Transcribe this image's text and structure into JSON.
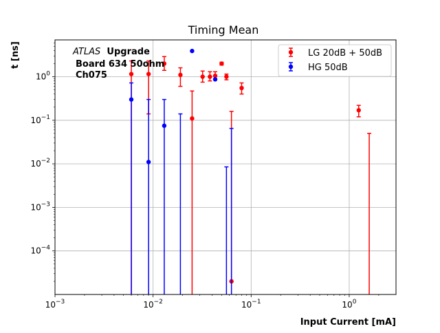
{
  "chart_data": {
    "type": "scatter",
    "title": "Timing Mean",
    "xlabel": "Input Current [mA]",
    "ylabel": "t [ns]",
    "xscale": "log",
    "yscale": "log",
    "xlim": [
      0.001,
      3.0
    ],
    "ylim": [
      1e-05,
      7.0
    ],
    "x_ticks": [
      {
        "value": 0.001,
        "label": "10",
        "exp": "−3"
      },
      {
        "value": 0.01,
        "label": "10",
        "exp": "−2"
      },
      {
        "value": 0.1,
        "label": "10",
        "exp": "−1"
      },
      {
        "value": 1,
        "label": "10",
        "exp": "0"
      }
    ],
    "y_ticks": [
      {
        "value": 0.0001,
        "label": "10",
        "exp": "−4"
      },
      {
        "value": 0.001,
        "label": "10",
        "exp": "−3"
      },
      {
        "value": 0.01,
        "label": "10",
        "exp": "−2"
      },
      {
        "value": 0.1,
        "label": "10",
        "exp": "−1"
      },
      {
        "value": 1,
        "label": "10",
        "exp": "0"
      }
    ],
    "grid": true,
    "legend_position": "top-right",
    "annotation": {
      "experiment": "ATLAS",
      "suffix": "Upgrade",
      "line2": "Board 634 50ohm",
      "line3": "Ch075"
    },
    "series": [
      {
        "name": "LG 20dB + 50dB",
        "color": "#ff0000",
        "points": [
          {
            "x": 0.006,
            "y": 1.15,
            "ylo": 1e-05,
            "yhi": 2.3
          },
          {
            "x": 0.009,
            "y": 1.15,
            "ylo": 0.14,
            "yhi": 2.3
          },
          {
            "x": 0.013,
            "y": 2.0,
            "ylo": 1.4,
            "yhi": 2.9
          },
          {
            "x": 0.019,
            "y": 1.1,
            "ylo": 0.6,
            "yhi": 1.6
          },
          {
            "x": 0.025,
            "y": 0.11,
            "ylo": 1e-05,
            "yhi": 0.47
          },
          {
            "x": 0.032,
            "y": 1.0,
            "ylo": 0.75,
            "yhi": 1.35
          },
          {
            "x": 0.038,
            "y": 1.0,
            "ylo": 0.8,
            "yhi": 1.3
          },
          {
            "x": 0.043,
            "y": 1.05,
            "ylo": 0.85,
            "yhi": 1.3
          },
          {
            "x": 0.05,
            "y": 2.0,
            "ylo": 1.85,
            "yhi": 2.15
          },
          {
            "x": 0.056,
            "y": 1.0,
            "ylo": 0.85,
            "yhi": 1.15
          },
          {
            "x": 0.063,
            "y": 2e-05,
            "ylo": 2e-05,
            "yhi": 0.16
          },
          {
            "x": 0.08,
            "y": 0.55,
            "ylo": 0.4,
            "yhi": 0.72
          },
          {
            "x": 1.25,
            "y": 0.17,
            "ylo": 0.12,
            "yhi": 0.22
          },
          {
            "x": 1.6,
            "y": null,
            "ylo": 1e-05,
            "yhi": 0.05
          }
        ]
      },
      {
        "name": "HG 50dB",
        "color": "#0000ff",
        "points": [
          {
            "x": 0.006,
            "y": 0.3,
            "ylo": 1e-05,
            "yhi": 0.72
          },
          {
            "x": 0.009,
            "y": 0.011,
            "ylo": 1e-05,
            "yhi": 0.3
          },
          {
            "x": 0.013,
            "y": 0.075,
            "ylo": 1e-05,
            "yhi": 0.3
          },
          {
            "x": 0.019,
            "y": null,
            "ylo": 1e-05,
            "yhi": 0.14
          },
          {
            "x": 0.025,
            "y": 3.9,
            "ylo": 3.9,
            "yhi": 3.9
          },
          {
            "x": 0.043,
            "y": 0.87,
            "ylo": 0.87,
            "yhi": 0.87
          },
          {
            "x": 0.056,
            "y": null,
            "ylo": 1e-05,
            "yhi": 0.0085
          },
          {
            "x": 0.063,
            "y": null,
            "ylo": 1e-05,
            "yhi": 0.065
          }
        ]
      }
    ]
  }
}
